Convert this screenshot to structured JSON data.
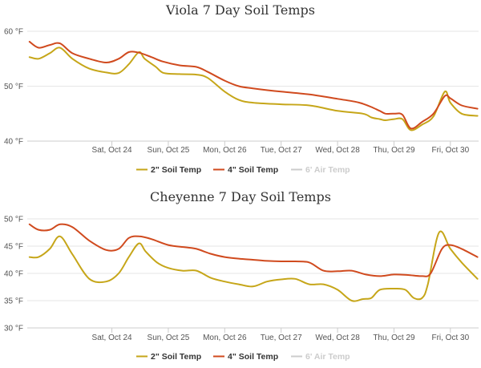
{
  "chart_data": [
    {
      "type": "line",
      "title": "Viola 7 Day Soil Temps",
      "xlabel": "",
      "ylabel": "",
      "y_ticks": [
        "40 °F",
        "50 °F",
        "60 °F"
      ],
      "ylim": [
        40,
        60
      ],
      "x_range": [
        -1.5,
        6.5
      ],
      "x_ticks": [
        "Sat, Oct 24",
        "Sun, Oct 25",
        "Mon, Oct 26",
        "Tue, Oct 27",
        "Wed, Oct 28",
        "Thu, Oct 29",
        "Fri, Oct 30"
      ],
      "grid": true,
      "legend": "bottom-center",
      "series": [
        {
          "name": "2\" Soil Temp",
          "color": "#c6a619",
          "x": [
            -1.46,
            -1.3,
            -1.1,
            -0.92,
            -0.7,
            -0.4,
            -0.1,
            0.12,
            0.3,
            0.48,
            0.58,
            0.78,
            0.92,
            1.2,
            1.5,
            1.7,
            2.0,
            2.25,
            2.5,
            3.0,
            3.5,
            4.0,
            4.45,
            4.6,
            4.75,
            4.85,
            5.0,
            5.15,
            5.3,
            5.5,
            5.7,
            5.9,
            6.0,
            6.2,
            6.48
          ],
          "values": [
            55.3,
            55.0,
            56.0,
            57.0,
            55.0,
            53.2,
            52.5,
            52.4,
            54.0,
            56.2,
            55.0,
            53.5,
            52.4,
            52.2,
            52.1,
            51.5,
            49.0,
            47.5,
            47.0,
            46.7,
            46.5,
            45.5,
            45.0,
            44.3,
            44.0,
            43.8,
            44.0,
            44.0,
            42.0,
            43.0,
            44.5,
            49.0,
            47.0,
            45.0,
            44.6
          ]
        },
        {
          "name": "4\" Soil Temp",
          "color": "#d04a1e",
          "x": [
            -1.46,
            -1.3,
            -1.1,
            -0.92,
            -0.7,
            -0.4,
            -0.1,
            0.12,
            0.3,
            0.48,
            0.7,
            0.9,
            1.2,
            1.5,
            1.7,
            2.0,
            2.25,
            2.5,
            3.0,
            3.5,
            4.0,
            4.3,
            4.45,
            4.6,
            4.75,
            4.85,
            5.0,
            5.15,
            5.3,
            5.5,
            5.7,
            5.9,
            6.0,
            6.2,
            6.48
          ],
          "values": [
            58.1,
            57.0,
            57.5,
            57.8,
            56.0,
            55.0,
            54.3,
            55.0,
            56.2,
            56.1,
            55.3,
            54.5,
            53.8,
            53.5,
            52.6,
            51.0,
            50.0,
            49.6,
            49.0,
            48.5,
            47.7,
            47.2,
            46.8,
            46.2,
            45.5,
            45.0,
            45.0,
            44.8,
            42.3,
            43.5,
            45.0,
            48.2,
            47.8,
            46.5,
            45.9
          ]
        },
        {
          "name": "6' Air Temp",
          "color": "#cccccc",
          "hidden": true,
          "x": [],
          "values": []
        }
      ]
    },
    {
      "type": "line",
      "title": "Cheyenne 7 Day Soil Temps",
      "xlabel": "",
      "ylabel": "",
      "y_ticks": [
        "30 °F",
        "35 °F",
        "40 °F",
        "45 °F",
        "50 °F"
      ],
      "ylim": [
        30,
        50
      ],
      "x_range": [
        -1.5,
        6.5
      ],
      "x_ticks": [
        "Sat, Oct 24",
        "Sun, Oct 25",
        "Mon, Oct 26",
        "Tue, Oct 27",
        "Wed, Oct 28",
        "Thu, Oct 29",
        "Fri, Oct 30"
      ],
      "grid": true,
      "legend": "bottom-center",
      "series": [
        {
          "name": "2\" Soil Temp",
          "color": "#c6a619",
          "x": [
            -1.46,
            -1.3,
            -1.1,
            -0.92,
            -0.7,
            -0.4,
            -0.1,
            0.12,
            0.3,
            0.48,
            0.6,
            0.8,
            1.0,
            1.25,
            1.5,
            1.75,
            2.0,
            2.25,
            2.5,
            2.75,
            3.0,
            3.25,
            3.5,
            3.75,
            4.0,
            4.25,
            4.45,
            4.6,
            4.75,
            5.0,
            5.2,
            5.35,
            5.5,
            5.6,
            5.8,
            6.0,
            6.2,
            6.48
          ],
          "values": [
            43.0,
            43.0,
            44.5,
            46.8,
            43.5,
            39.0,
            38.5,
            40.0,
            43.0,
            45.5,
            44.0,
            42.0,
            41.0,
            40.5,
            40.5,
            39.2,
            38.5,
            38.0,
            37.6,
            38.5,
            38.9,
            39.0,
            38.0,
            38.0,
            37.0,
            35.0,
            35.3,
            35.5,
            37.0,
            37.2,
            37.0,
            35.5,
            35.5,
            38.0,
            47.5,
            44.5,
            42.0,
            39.0
          ]
        },
        {
          "name": "4\" Soil Temp",
          "color": "#d04a1e",
          "x": [
            -1.46,
            -1.3,
            -1.1,
            -0.92,
            -0.7,
            -0.4,
            -0.1,
            0.12,
            0.3,
            0.48,
            0.7,
            1.0,
            1.3,
            1.5,
            1.75,
            2.0,
            2.25,
            2.5,
            2.75,
            3.0,
            3.25,
            3.5,
            3.75,
            4.0,
            4.25,
            4.5,
            4.75,
            5.0,
            5.25,
            5.5,
            5.65,
            5.85,
            6.0,
            6.2,
            6.48
          ],
          "values": [
            49.0,
            48.0,
            48.0,
            49.0,
            48.5,
            46.0,
            44.3,
            44.5,
            46.5,
            46.8,
            46.3,
            45.2,
            44.8,
            44.5,
            43.6,
            43.0,
            42.7,
            42.5,
            42.3,
            42.2,
            42.2,
            42.0,
            40.5,
            40.4,
            40.5,
            39.8,
            39.5,
            39.8,
            39.7,
            39.5,
            40.0,
            44.5,
            45.2,
            44.5,
            43.0
          ]
        },
        {
          "name": "6' Air Temp",
          "color": "#cccccc",
          "hidden": true,
          "x": [],
          "values": []
        }
      ]
    }
  ]
}
